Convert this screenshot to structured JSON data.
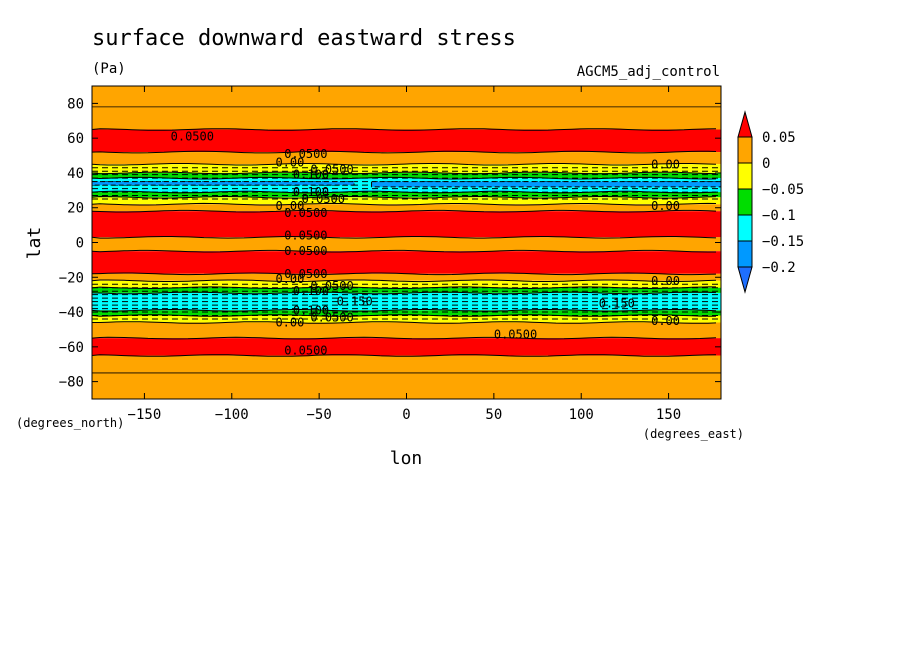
{
  "chart_data": {
    "type": "contour",
    "title": "surface downward eastward stress",
    "units": "(Pa)",
    "run_label": "AGCM5_adj_control",
    "xlabel": "lon",
    "ylabel": "lat",
    "x_units": "(degrees_east)",
    "y_units": "(degrees_north)",
    "xlim": [
      -180,
      180
    ],
    "ylim": [
      -90,
      90
    ],
    "x_ticks": [
      -150,
      -100,
      -50,
      0,
      50,
      100,
      150
    ],
    "y_ticks": [
      -80,
      -60,
      -40,
      -20,
      0,
      20,
      40,
      60,
      80
    ],
    "colorbar": {
      "labels": [
        "0.05",
        "0",
        "−0.05",
        "−0.1",
        "−0.15",
        "−0.2"
      ],
      "levels": [
        0.05,
        0,
        -0.05,
        -0.1,
        -0.15,
        -0.2
      ],
      "colors": {
        "above_0.05": "#ff0000",
        "0_to_0.05": "#ffa500",
        "-0.05_to_0": "#ffff00",
        "-0.1_to_-0.05": "#00dd00",
        "-0.15_to_-0.1": "#00ffff",
        "-0.2_to_-0.15": "#0099ff",
        "below_-0.2": "#1e6fff"
      }
    },
    "bands": [
      {
        "lat_top": 90,
        "lat_bottom": 65,
        "color": "#ffa500"
      },
      {
        "lat_top": 65,
        "lat_bottom": 52,
        "color": "#ff0000"
      },
      {
        "lat_top": 52,
        "lat_bottom": 45,
        "color": "#ffa500"
      },
      {
        "lat_top": 45,
        "lat_bottom": 40,
        "color": "#ffff00"
      },
      {
        "lat_top": 40,
        "lat_bottom": 37,
        "color": "#00dd00"
      },
      {
        "lat_top": 37,
        "lat_bottom": 29,
        "color": "#00ffff"
      },
      {
        "lat_top": 29,
        "lat_bottom": 26,
        "color": "#00dd00"
      },
      {
        "lat_top": 26,
        "lat_bottom": 22,
        "color": "#ffff00"
      },
      {
        "lat_top": 22,
        "lat_bottom": 18,
        "color": "#ffa500"
      },
      {
        "lat_top": 18,
        "lat_bottom": 3,
        "color": "#ff0000"
      },
      {
        "lat_top": 3,
        "lat_bottom": -5,
        "color": "#ffa500"
      },
      {
        "lat_top": -5,
        "lat_bottom": -18,
        "color": "#ff0000"
      },
      {
        "lat_top": -18,
        "lat_bottom": -22,
        "color": "#ffa500"
      },
      {
        "lat_top": -22,
        "lat_bottom": -26,
        "color": "#ffff00"
      },
      {
        "lat_top": -26,
        "lat_bottom": -29,
        "color": "#00dd00"
      },
      {
        "lat_top": -29,
        "lat_bottom": -39,
        "color": "#00ffff"
      },
      {
        "lat_top": -39,
        "lat_bottom": -42,
        "color": "#00dd00"
      },
      {
        "lat_top": -42,
        "lat_bottom": -46,
        "color": "#ffff00"
      },
      {
        "lat_top": -46,
        "lat_bottom": -55,
        "color": "#ffa500"
      },
      {
        "lat_top": -55,
        "lat_bottom": -65,
        "color": "#ff0000"
      },
      {
        "lat_top": -65,
        "lat_bottom": -90,
        "color": "#ffa500"
      }
    ],
    "contour_labels": [
      {
        "text": "0.0500",
        "lon": -135,
        "lat": 61
      },
      {
        "text": "0.0500",
        "lon": -70,
        "lat": 51
      },
      {
        "text": "0.00",
        "lon": -75,
        "lat": 46
      },
      {
        "text": "0.0500",
        "lon": -55,
        "lat": 42
      },
      {
        "text": "0.100",
        "lon": -65,
        "lat": 39
      },
      {
        "text": "0.100",
        "lon": -65,
        "lat": 29
      },
      {
        "text": "0.0500",
        "lon": -60,
        "lat": 25
      },
      {
        "text": "0.00",
        "lon": -75,
        "lat": 21
      },
      {
        "text": "0.0500",
        "lon": -70,
        "lat": 17
      },
      {
        "text": "0.0500",
        "lon": -70,
        "lat": 4
      },
      {
        "text": "0.0500",
        "lon": -70,
        "lat": -5
      },
      {
        "text": "0.0500",
        "lon": -70,
        "lat": -18
      },
      {
        "text": "0.00",
        "lon": -75,
        "lat": -21
      },
      {
        "text": "0.0500",
        "lon": -55,
        "lat": -25
      },
      {
        "text": "0.100",
        "lon": -65,
        "lat": -28
      },
      {
        "text": "0.150",
        "lon": -40,
        "lat": -34
      },
      {
        "text": "0.100",
        "lon": -65,
        "lat": -39
      },
      {
        "text": "0.0500",
        "lon": -55,
        "lat": -43
      },
      {
        "text": "0.00",
        "lon": -75,
        "lat": -46
      },
      {
        "text": "0.0500",
        "lon": -70,
        "lat": -62
      },
      {
        "text": "0.0500",
        "lon": 50,
        "lat": -53
      },
      {
        "text": "0.150",
        "lon": 110,
        "lat": -35
      },
      {
        "text": "0.00",
        "lon": 140,
        "lat": 45
      },
      {
        "text": "0.00",
        "lon": 140,
        "lat": 21
      },
      {
        "text": "0.00",
        "lon": 140,
        "lat": -22
      },
      {
        "text": "0.00",
        "lon": 140,
        "lat": -45
      }
    ]
  }
}
